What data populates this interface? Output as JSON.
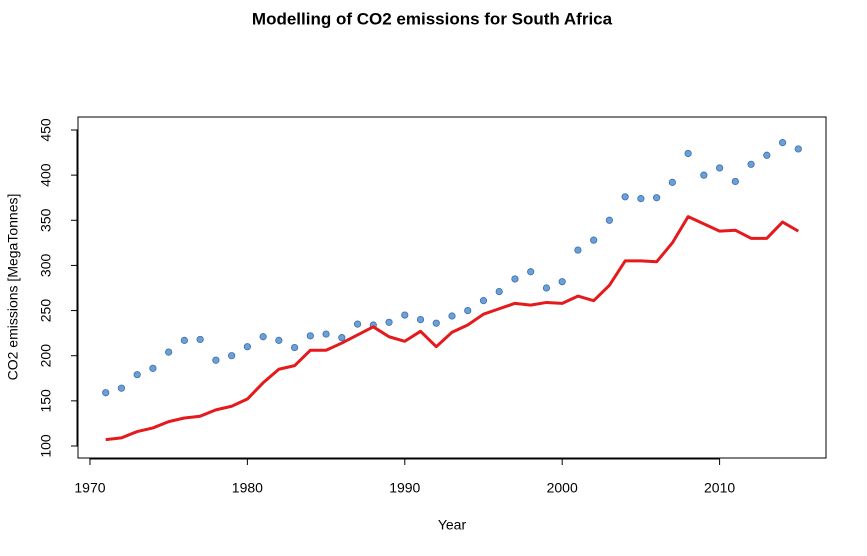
{
  "chart_data": {
    "type": "line",
    "title": "Modelling of CO2 emissions for South Africa",
    "x_label": "Year",
    "y_label": "CO2 emissions [MegaTonnes]",
    "x": [
      1971,
      1972,
      1973,
      1974,
      1975,
      1976,
      1977,
      1978,
      1979,
      1980,
      1981,
      1982,
      1983,
      1984,
      1985,
      1986,
      1987,
      1988,
      1989,
      1990,
      1991,
      1992,
      1993,
      1994,
      1995,
      1996,
      1997,
      1998,
      1999,
      2000,
      2001,
      2002,
      2003,
      2004,
      2005,
      2006,
      2007,
      2008,
      2009,
      2010,
      2011,
      2012,
      2013,
      2014,
      2015
    ],
    "series": [
      {
        "style": "points",
        "color": "#6a9fd8",
        "values": [
          159,
          164,
          179,
          186,
          204,
          217,
          218,
          195,
          200,
          210,
          221,
          217,
          209,
          222,
          224,
          220,
          235,
          234,
          237,
          245,
          240,
          236,
          244,
          250,
          261,
          271,
          285,
          293,
          275,
          282,
          317,
          328,
          350,
          376,
          374,
          375,
          392,
          424,
          400,
          408,
          393,
          412,
          422,
          436,
          429
        ]
      },
      {
        "style": "line",
        "color": "#e41a1c",
        "values": [
          107,
          109,
          116,
          120,
          127,
          131,
          133,
          140,
          144,
          152,
          170,
          185,
          189,
          206,
          206,
          214,
          223,
          232,
          221,
          216,
          227,
          210,
          226,
          234,
          246,
          252,
          258,
          256,
          259,
          258,
          266,
          261,
          278,
          305,
          305,
          304,
          325,
          354,
          346,
          338,
          339,
          330,
          330,
          348,
          338
        ]
      }
    ],
    "xlim": [
      1969.24,
      2016.76
    ],
    "xticks": [
      1970,
      1980,
      1990,
      2000,
      2010
    ],
    "ylim": [
      86.7,
      464.4
    ],
    "yticks": [
      100,
      150,
      200,
      250,
      300,
      350,
      400,
      450
    ]
  }
}
